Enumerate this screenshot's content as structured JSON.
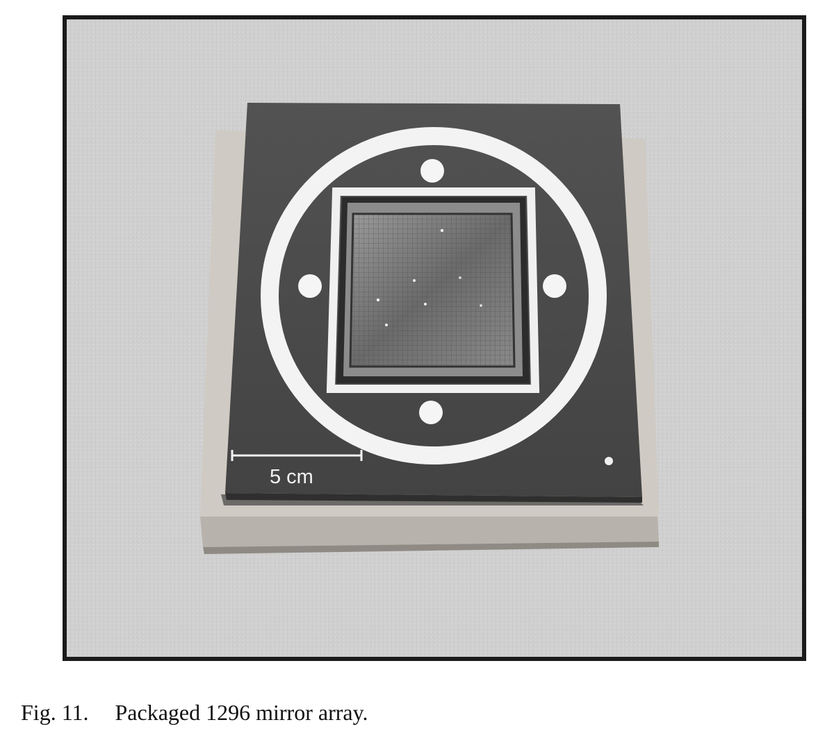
{
  "figure": {
    "label": "Fig. 11.",
    "caption": "Packaged 1296 mirror array.",
    "scale_bar_label": "5 cm"
  },
  "colors": {
    "frame": "#1a1a1a",
    "background_surface": "#d4d4d4",
    "package_plate": "#4a4a4a",
    "ring": "#f4f4f4",
    "base_block": "#c9c4bd",
    "mirror_array": "#6e6e6e"
  }
}
